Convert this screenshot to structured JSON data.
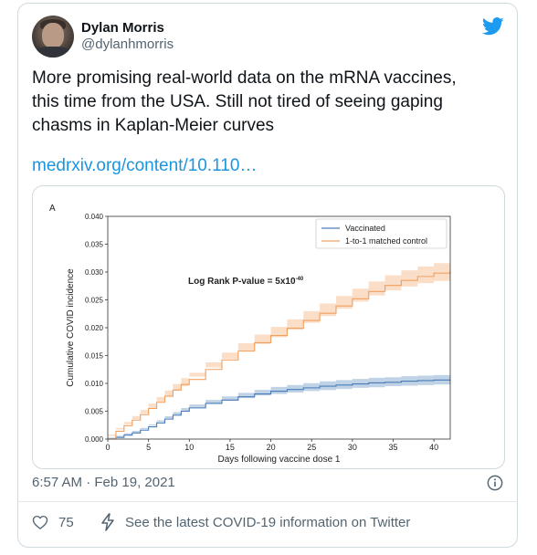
{
  "user": {
    "name": "Dylan Morris",
    "handle": "@dylanhmorris",
    "avatar_icon": "user-photo"
  },
  "tweet": {
    "text_lines": [
      "More promising real-world data on the mRNA vaccines,",
      "this time from the USA. Still not tired of seeing gaping",
      "chasms in Kaplan-Meier curves"
    ],
    "link_text": "medrxiv.org/content/10.110…",
    "timestamp": "6:57 AM · Feb 19, 2021",
    "likes": "75",
    "covid_notice": "See the latest COVID-19 information on Twitter"
  },
  "colors": {
    "accent": "#1b95e0",
    "text": "#0f1419",
    "muted": "#536471",
    "vaccinated": "#4a7db8",
    "control": "#f0a060"
  },
  "icons": {
    "brand": "twitter-bird-icon",
    "info": "info-circle-icon",
    "like": "heart-icon",
    "notice": "lightning-bolt-icon"
  },
  "chart_data": {
    "type": "line",
    "panel_label": "A",
    "annotation": "Log Rank P-value = 5x10",
    "annotation_exponent": "-40",
    "xlabel": "Days following vaccine dose 1",
    "ylabel": "Cumulative COVID incidence",
    "xlim": [
      0,
      42
    ],
    "ylim": [
      0,
      0.04
    ],
    "x_ticks": [
      "0",
      "5",
      "10",
      "15",
      "20",
      "25",
      "30",
      "35",
      "40"
    ],
    "y_ticks": [
      "0.000",
      "0.005",
      "0.010",
      "0.015",
      "0.020",
      "0.025",
      "0.030",
      "0.035",
      "0.040"
    ],
    "legend_position": "top-right",
    "grid": false,
    "series": [
      {
        "name": "Vaccinated",
        "color": "#4a7db8",
        "x": [
          0,
          1,
          2,
          3,
          4,
          5,
          6,
          7,
          8,
          9,
          10,
          12,
          14,
          16,
          18,
          20,
          22,
          24,
          26,
          28,
          30,
          32,
          34,
          36,
          38,
          40,
          42
        ],
        "y": [
          0,
          0.0003,
          0.0007,
          0.0011,
          0.0016,
          0.0022,
          0.0029,
          0.0036,
          0.0043,
          0.005,
          0.0056,
          0.0064,
          0.007,
          0.0076,
          0.0081,
          0.0086,
          0.0089,
          0.0092,
          0.0095,
          0.0097,
          0.0099,
          0.0101,
          0.0102,
          0.0104,
          0.0105,
          0.0106,
          0.0107
        ],
        "band": 0.0009
      },
      {
        "name": "1-to-1 matched control",
        "color": "#f0a060",
        "x": [
          0,
          1,
          2,
          3,
          4,
          5,
          6,
          7,
          8,
          9,
          10,
          12,
          14,
          16,
          18,
          20,
          22,
          24,
          26,
          28,
          30,
          32,
          34,
          36,
          38,
          40,
          42
        ],
        "y": [
          0,
          0.0014,
          0.0024,
          0.0034,
          0.0044,
          0.0055,
          0.0066,
          0.0077,
          0.0088,
          0.0098,
          0.0107,
          0.0125,
          0.0142,
          0.0158,
          0.0173,
          0.0186,
          0.0199,
          0.0213,
          0.0226,
          0.0239,
          0.0252,
          0.0265,
          0.0276,
          0.0285,
          0.0292,
          0.0298,
          0.0302
        ],
        "band": 0.0018
      }
    ]
  }
}
